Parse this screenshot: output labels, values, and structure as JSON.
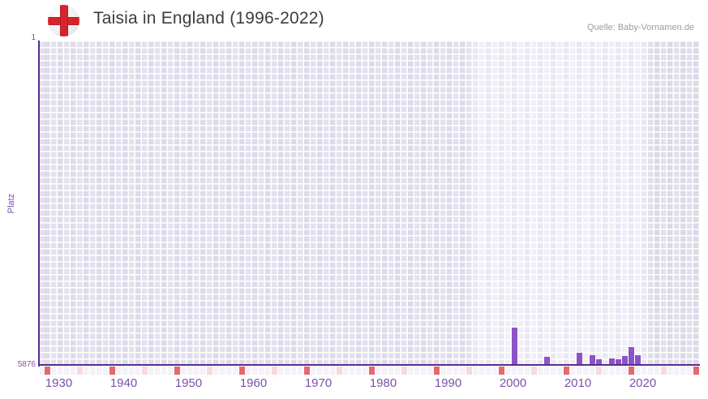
{
  "header": {
    "title": "Taisia in England (1996-2022)",
    "source": "Quelle: Baby-Vornamen.de",
    "flag_icon": "england-flag-circle"
  },
  "colors": {
    "bar": "#8C53C6",
    "axis_line": "#552E8E",
    "tick_text": "#7A52A8",
    "title_text": "#3C3C3C",
    "source_text": "#9C9C9C",
    "marker_decade": "#E2696E",
    "marker_half_decade": "#F7D9DE",
    "plot_outer_cells": "#E4E1EE",
    "plot_highlight_cells": "#F1EEF8",
    "plot_future_cells": "#E2DFEB",
    "flag_red": "#D5252B"
  },
  "chart_data": {
    "type": "bar",
    "title": "Taisia in England (1996-2022)",
    "xlabel": "",
    "ylabel": "Platz",
    "grid": true,
    "legend": "none",
    "y_axis": {
      "min": 1,
      "max": 5876,
      "inverted": true,
      "top_label": "1",
      "bottom_label": "5876"
    },
    "x_axis": {
      "start": 1930,
      "end": 2030,
      "tick_years": [
        1930,
        1940,
        1950,
        1960,
        1970,
        1980,
        1990,
        2000,
        2010,
        2020
      ]
    },
    "highlight_range": {
      "from": 1996,
      "to": 2022
    },
    "markers": {
      "decade_years": [
        1930,
        1940,
        1950,
        1960,
        1970,
        1980,
        1990,
        2000,
        2010,
        2020,
        2030
      ],
      "half_decade_years": [
        1935,
        1945,
        1955,
        1965,
        1975,
        1985,
        1995,
        2005,
        2015,
        2025
      ]
    },
    "series": [
      {
        "name": "Platz",
        "points": [
          {
            "year": 2002,
            "rank": 5200
          },
          {
            "year": 2007,
            "rank": 5730
          },
          {
            "year": 2012,
            "rank": 5655
          },
          {
            "year": 2014,
            "rank": 5700
          },
          {
            "year": 2015,
            "rank": 5775
          },
          {
            "year": 2017,
            "rank": 5760
          },
          {
            "year": 2018,
            "rank": 5775
          },
          {
            "year": 2019,
            "rank": 5715
          },
          {
            "year": 2020,
            "rank": 5555
          },
          {
            "year": 2021,
            "rank": 5700
          }
        ]
      }
    ]
  }
}
